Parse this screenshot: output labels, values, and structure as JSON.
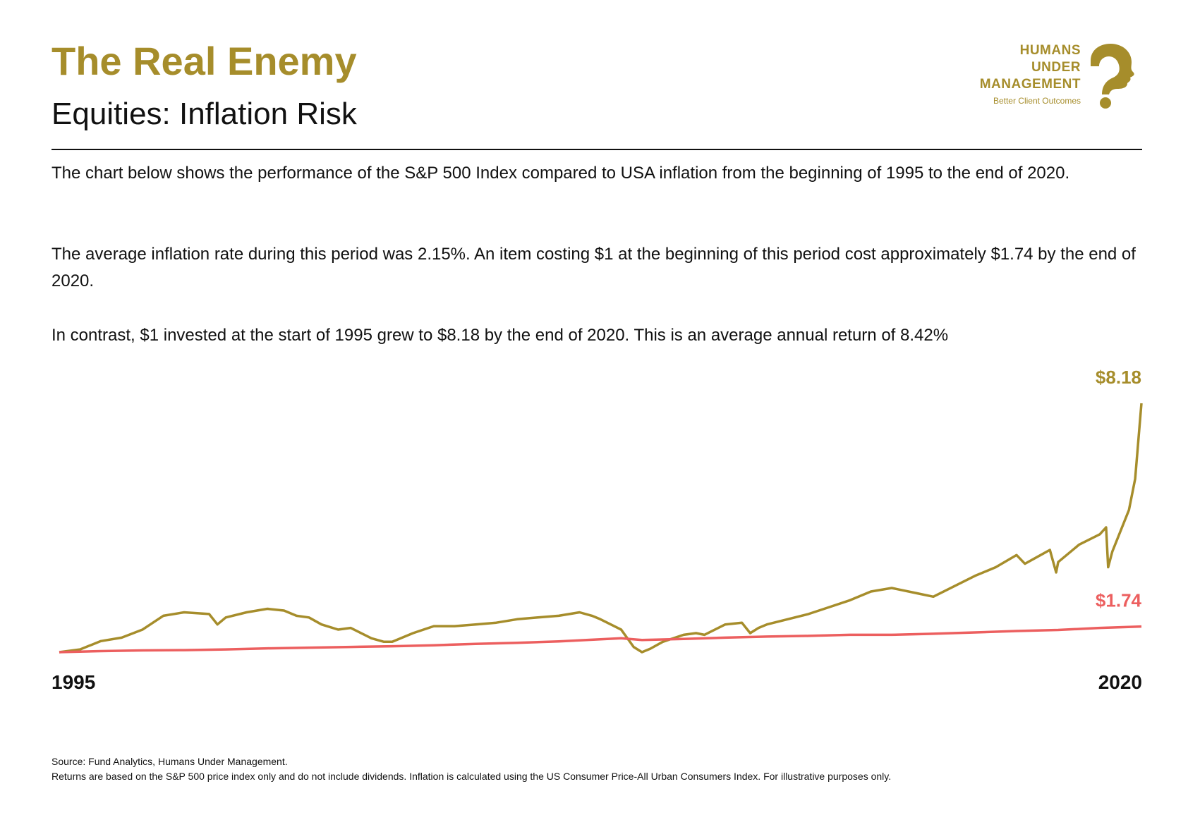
{
  "header": {
    "title": "The Real Enemy",
    "subtitle": "Equities: Inflation Risk"
  },
  "logo": {
    "line1": "HUMANS",
    "line2": "UNDER",
    "line3": "MANAGEMENT",
    "tagline": "Better Client Outcomes",
    "icon": "question-mark-head-icon"
  },
  "body": {
    "p1": "The chart below shows the performance of the S&P 500 Index compared to USA inflation from the beginning of 1995 to the end of 2020.",
    "p2": "The average inflation rate during this period was 2.15%. An item costing $1 at the beginning of this period cost approximately $1.74 by the end of 2020.",
    "p3": "In contrast, $1 invested at the start of 1995 grew to $8.18 by the end of 2020. This is an average annual return of 8.42%"
  },
  "colors": {
    "equity": "#a68d2b",
    "inflation": "#ec5f5f",
    "accent": "#a68d2b"
  },
  "chart_data": {
    "type": "line",
    "x_start_label": "1995",
    "x_end_label": "2020",
    "grid": false,
    "legend": "none",
    "series": [
      {
        "key": "equity",
        "end_label": "$8.18",
        "x": [
          1995.0,
          1995.5,
          1996.0,
          1996.5,
          1997.0,
          1997.5,
          1998.0,
          1998.6,
          1998.8,
          1999.0,
          1999.5,
          2000.0,
          2000.4,
          2000.7,
          2001.0,
          2001.3,
          2001.7,
          2002.0,
          2002.5,
          2002.8,
          2003.0,
          2003.5,
          2004.0,
          2004.5,
          2005.0,
          2005.5,
          2006.0,
          2006.5,
          2007.0,
          2007.5,
          2007.8,
          2008.0,
          2008.5,
          2008.8,
          2009.0,
          2009.2,
          2009.5,
          2010.0,
          2010.3,
          2010.5,
          2011.0,
          2011.4,
          2011.6,
          2011.8,
          2012.0,
          2012.5,
          2013.0,
          2013.5,
          2014.0,
          2014.5,
          2015.0,
          2015.6,
          2016.0,
          2016.5,
          2017.0,
          2017.5,
          2018.0,
          2018.2,
          2018.5,
          2018.8,
          2018.95,
          2019.0,
          2019.5,
          2020.0,
          2020.15,
          2020.2,
          2020.3,
          2020.5,
          2020.7,
          2020.85,
          2021.0
        ],
        "values": [
          1.0,
          1.08,
          1.32,
          1.42,
          1.65,
          2.05,
          2.15,
          2.1,
          1.8,
          2.0,
          2.15,
          2.25,
          2.2,
          2.05,
          2.0,
          1.8,
          1.65,
          1.7,
          1.4,
          1.3,
          1.3,
          1.55,
          1.75,
          1.75,
          1.8,
          1.85,
          1.95,
          2.0,
          2.05,
          2.15,
          2.05,
          1.95,
          1.65,
          1.15,
          1.0,
          1.1,
          1.3,
          1.5,
          1.55,
          1.5,
          1.8,
          1.85,
          1.55,
          1.7,
          1.8,
          1.95,
          2.1,
          2.3,
          2.5,
          2.75,
          2.85,
          2.7,
          2.6,
          2.9,
          3.2,
          3.45,
          3.8,
          3.55,
          3.75,
          3.95,
          3.3,
          3.6,
          4.1,
          4.4,
          4.6,
          3.45,
          3.9,
          4.5,
          5.1,
          6.0,
          8.18
        ]
      },
      {
        "key": "inflation",
        "end_label": "$1.74",
        "x": [
          1995,
          1996,
          1997,
          1998,
          1999,
          2000,
          2001,
          2002,
          2003,
          2004,
          2005,
          2006,
          2007,
          2008,
          2008.5,
          2009,
          2010,
          2011,
          2012,
          2013,
          2014,
          2015,
          2016,
          2017,
          2018,
          2019,
          2020,
          2021
        ],
        "values": [
          1.0,
          1.03,
          1.05,
          1.06,
          1.08,
          1.11,
          1.13,
          1.15,
          1.17,
          1.2,
          1.24,
          1.27,
          1.31,
          1.37,
          1.4,
          1.35,
          1.38,
          1.42,
          1.45,
          1.47,
          1.5,
          1.5,
          1.53,
          1.57,
          1.61,
          1.64,
          1.7,
          1.74
        ]
      }
    ],
    "xlim": [
      1995,
      2021
    ],
    "ylim": [
      1.0,
      8.18
    ]
  },
  "footer": {
    "source": "Source: Fund Analytics, Humans Under Management.",
    "note": "Returns are based on the S&P 500 price index only and do not include dividends. Inflation is calculated using the US Consumer Price-All Urban Consumers Index. For illustrative purposes only."
  }
}
